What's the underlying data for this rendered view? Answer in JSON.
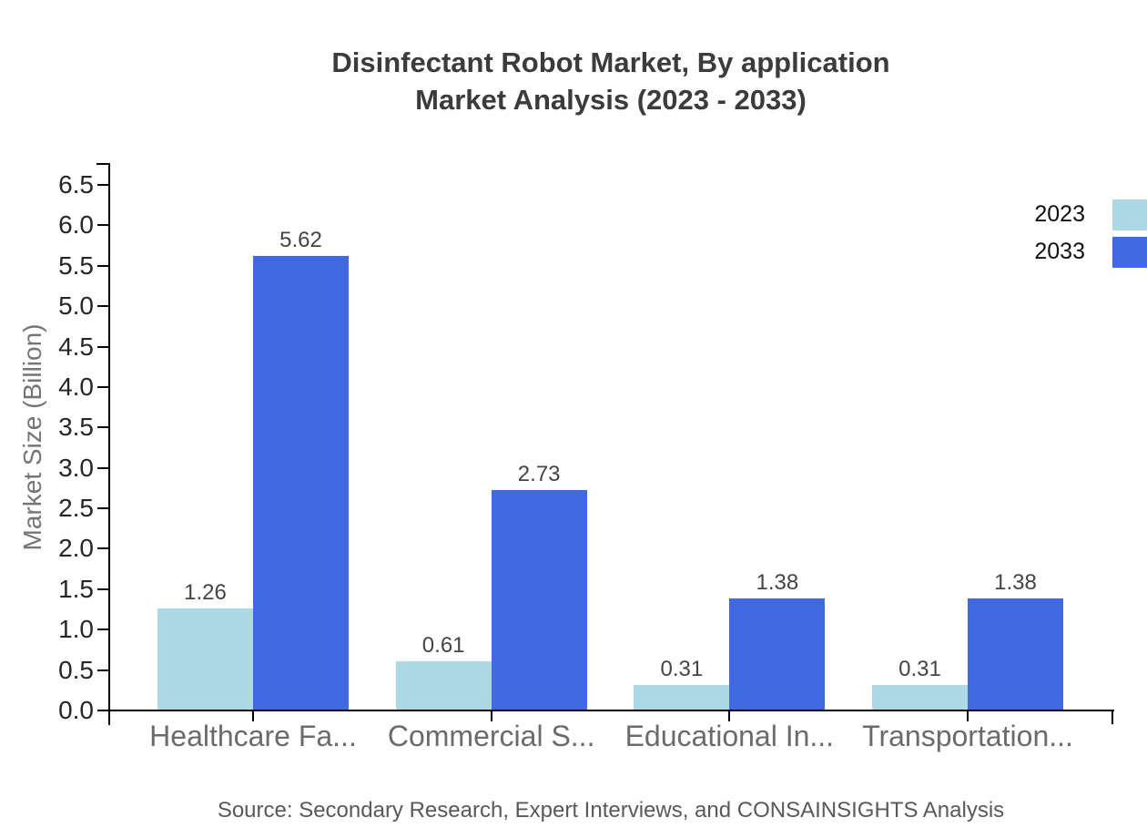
{
  "title": {
    "line1": "Disinfectant Robot Market, By application",
    "line2": "Market Analysis (2023 - 2033)"
  },
  "source": "Source: Secondary Research, Expert Interviews, and CONSAINSIGHTS Analysis",
  "colors": {
    "series_2023": "#add8e6",
    "series_2033": "#4169e1",
    "axis": "#000000"
  },
  "chart_data": {
    "type": "bar",
    "title": "Disinfectant Robot Market, By application Market Analysis (2023 - 2033)",
    "xlabel": "",
    "ylabel": "Market Size (Billion)",
    "categories": [
      "Healthcare Fa...",
      "Commercial S...",
      "Educational In...",
      "Transportation..."
    ],
    "series": [
      {
        "name": "2023",
        "color": "#add8e6",
        "values": [
          1.26,
          0.61,
          0.31,
          0.31
        ]
      },
      {
        "name": "2033",
        "color": "#4169e1",
        "values": [
          5.62,
          2.73,
          1.38,
          1.38
        ]
      }
    ],
    "ylim": [
      0.0,
      6.76
    ],
    "yticks": [
      0.0,
      0.5,
      1.0,
      1.5,
      2.0,
      2.5,
      3.0,
      3.5,
      4.0,
      4.5,
      5.0,
      5.5,
      6.0,
      6.5
    ],
    "grid": false,
    "legend_position": "top-right",
    "value_labels": true
  }
}
